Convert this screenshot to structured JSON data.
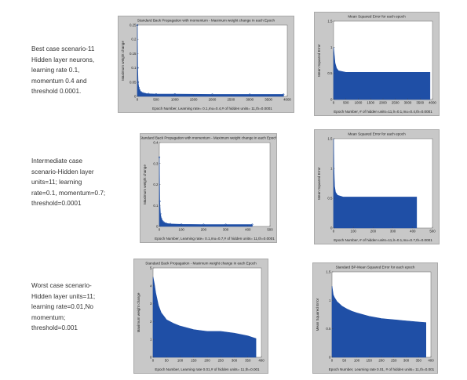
{
  "scenarios": [
    {
      "caption": "Best case scenario-11\nHidden layer neurons,\nlearning rate 0.1,\nmomentum 0.4 and\nthreshold 0.0001."
    },
    {
      "caption": "Intermediate case\nscenario-Hidden layer\nunits=11; learning\nrate=0.1, momentum=0.7;\nthreshold=0.0001"
    },
    {
      "caption": "Worst case scenario-\nHidden layer units=11;\nlearning rate=0.01,No\nmomentum;\nthreshold=0.001"
    }
  ],
  "colors": {
    "series": "#1f4fa6",
    "marker": "#1f4fa6",
    "panel_bg": "#c8c8c8",
    "plot_bg": "#ffffff"
  },
  "chart_data": [
    {
      "type": "scatter",
      "title": "Standard Back Propagation with momentum - Maximum weight change in each Epoch",
      "xlabel": "Epoch Number, Learning rate= 0.1,mu=0.4,# of hidden units= 11,th=0.0001",
      "ylabel": "Maximum weight change",
      "xlim": [
        0,
        4000
      ],
      "ylim": [
        0,
        0.25
      ],
      "xticks": [
        "0",
        "500",
        "1000",
        "1500",
        "2000",
        "2500",
        "3000",
        "3500",
        "4000"
      ],
      "yticks": [
        "0",
        "0.05",
        "0.1",
        "0.15",
        "0.2",
        "0.25"
      ],
      "x": [
        0,
        10,
        20,
        40,
        60,
        100,
        150,
        200,
        300,
        500,
        1000,
        2000,
        3000,
        3900
      ],
      "y": [
        0.25,
        0.1,
        0.05,
        0.03,
        0.022,
        0.015,
        0.012,
        0.01,
        0.009,
        0.008,
        0.008,
        0.007,
        0.007,
        0.007
      ]
    },
    {
      "type": "area",
      "title": "Mean Squared Error for each epoch",
      "xlabel": "Epoch Number, # of hidden units=11,lr=0.1,mu=0.4,th=0.0001",
      "ylabel": "Mean Squared Error",
      "xlim": [
        0,
        4000
      ],
      "ylim": [
        0,
        1.5
      ],
      "xticks": [
        "0",
        "500",
        "1000",
        "1500",
        "2000",
        "2500",
        "3000",
        "3500",
        "4000"
      ],
      "yticks": [
        "0",
        "0.5",
        "1",
        "1.5"
      ],
      "x": [
        0,
        20,
        60,
        120,
        200,
        500,
        1000,
        2000,
        3000,
        3900
      ],
      "y": [
        1.0,
        0.9,
        0.7,
        0.6,
        0.55,
        0.52,
        0.52,
        0.52,
        0.52,
        0.52
      ]
    },
    {
      "type": "scatter",
      "title": "Standard Back Propagation with momentum - Maximum weight change in each Epoch",
      "xlabel": "Epoch Number, Learning rate= 0.1,mu=0.7,# of hidden units= 11,th=0.0001",
      "ylabel": "Maximum weight change",
      "xlim": [
        0,
        500
      ],
      "ylim": [
        0,
        0.4
      ],
      "xticks": [
        "0",
        "100",
        "200",
        "300",
        "400",
        "500"
      ],
      "yticks": [
        "0",
        "0.1",
        "0.2",
        "0.3",
        "0.4"
      ],
      "x": [
        0,
        2,
        5,
        10,
        15,
        20,
        30,
        50,
        100,
        200,
        300,
        420
      ],
      "y": [
        0.33,
        0.12,
        0.06,
        0.035,
        0.025,
        0.02,
        0.015,
        0.012,
        0.01,
        0.009,
        0.009,
        0.009
      ]
    },
    {
      "type": "area",
      "title": "Mean Squared Error for each epoch",
      "xlabel": "Epoch Number, # of hidden units=11,lr=0.1,mu=0.7,th=0.0001",
      "ylabel": "Mean Squared Error",
      "xlim": [
        0,
        500
      ],
      "ylim": [
        0,
        1.5
      ],
      "xticks": [
        "0",
        "100",
        "200",
        "300",
        "400",
        "500"
      ],
      "yticks": [
        "0",
        "0.5",
        "1",
        "1.5"
      ],
      "x": [
        0,
        2,
        5,
        10,
        20,
        50,
        100,
        200,
        300,
        420
      ],
      "y": [
        1.5,
        1.0,
        0.7,
        0.6,
        0.55,
        0.52,
        0.52,
        0.52,
        0.52,
        0.52
      ]
    },
    {
      "type": "area",
      "title": "Standard Back Propagation - Maximum weight change in each Epoch",
      "xlabel": "Epoch Number, Learning rate 0.01,# of hidden units= 11,th=0.001",
      "ylabel": "Maximum weight change",
      "xlim": [
        0,
        400
      ],
      "ylim": [
        0,
        5
      ],
      "xticks": [
        "0",
        "50",
        "100",
        "150",
        "200",
        "250",
        "300",
        "350",
        "400"
      ],
      "yticks": [
        "0",
        "1",
        "2",
        "3",
        "4",
        "5"
      ],
      "x": [
        0,
        5,
        10,
        20,
        30,
        40,
        50,
        75,
        100,
        150,
        200,
        250,
        300,
        350,
        380
      ],
      "y": [
        4.5,
        4.1,
        3.6,
        2.9,
        2.5,
        2.3,
        2.1,
        1.9,
        1.75,
        1.55,
        1.45,
        1.45,
        1.35,
        1.2,
        1.05
      ]
    },
    {
      "type": "area",
      "title": "Standard BP-Mean Squared Error for each epoch",
      "xlabel": "Epoch Number, Learning rate 0.01, # of hidden units= 11,th=0.001",
      "ylabel": "Mean Squared Error",
      "xlim": [
        0,
        400
      ],
      "ylim": [
        0,
        1.5
      ],
      "xticks": [
        "0",
        "50",
        "100",
        "150",
        "200",
        "250",
        "300",
        "350",
        "400"
      ],
      "yticks": [
        "0",
        "0.5",
        "1",
        "1.5"
      ],
      "x": [
        0,
        5,
        10,
        20,
        40,
        60,
        80,
        100,
        150,
        200,
        250,
        300,
        350,
        380
      ],
      "y": [
        1.25,
        1.1,
        1.05,
        0.98,
        0.9,
        0.85,
        0.81,
        0.78,
        0.72,
        0.68,
        0.66,
        0.64,
        0.62,
        0.61
      ]
    }
  ]
}
